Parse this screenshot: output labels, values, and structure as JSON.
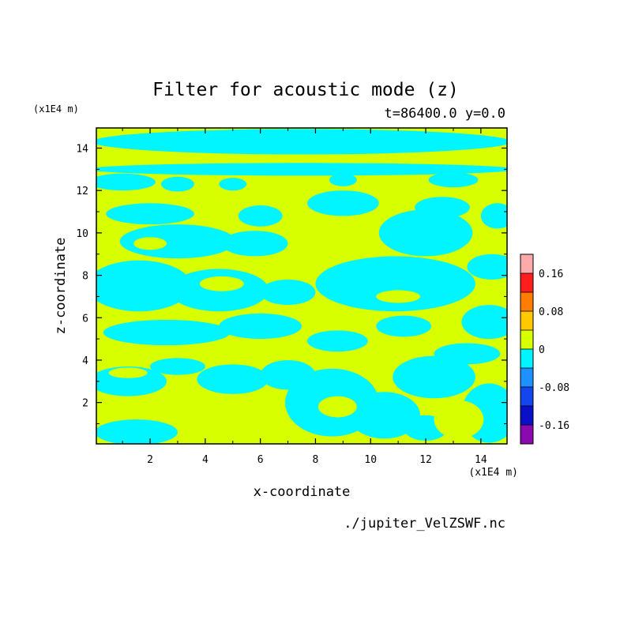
{
  "chart_data": {
    "type": "heatmap",
    "title": "Filter for acoustic mode (z)",
    "subtitle": "t=86400.0 y=0.0",
    "xlabel": "x-coordinate",
    "ylabel": "z-coordinate",
    "x_unit": "(x1E4 m)",
    "y_unit": "(x1E4 m)",
    "source_file": "./jupiter_VelZSWF.nc",
    "xlim": [
      0.05,
      14.95
    ],
    "ylim": [
      0.05,
      14.95
    ],
    "x_ticks": [
      "2",
      "4",
      "6",
      "8",
      "10",
      "12",
      "14"
    ],
    "y_ticks": [
      "2",
      "4",
      "6",
      "8",
      "10",
      "12",
      "14"
    ],
    "colorbar": {
      "levels": [
        -0.2,
        -0.16,
        -0.12,
        -0.08,
        -0.04,
        0,
        0.04,
        0.08,
        0.12,
        0.16,
        0.2
      ],
      "colors": [
        "#8b0ab0",
        "#0a0fc8",
        "#1446f0",
        "#1e90ff",
        "#00f5ff",
        "#d8ff00",
        "#ffc800",
        "#ff7d00",
        "#ff1e1e",
        "#ffaaaa"
      ],
      "tick_labels": [
        "-0.16",
        "-0.08",
        "0",
        "0.08",
        "0.16"
      ]
    },
    "field_colors": {
      "negative": "#00f5ff",
      "positive": "#d8ff00"
    },
    "regions_negative": [
      {
        "cx": 7.5,
        "cy": 14.3,
        "rx": 7.6,
        "ry": 0.6
      },
      {
        "cx": 7.5,
        "cy": 13.0,
        "rx": 7.8,
        "ry": 0.3
      },
      {
        "cx": 1.0,
        "cy": 12.4,
        "rx": 1.2,
        "ry": 0.4
      },
      {
        "cx": 3.0,
        "cy": 12.3,
        "rx": 0.6,
        "ry": 0.35
      },
      {
        "cx": 5.0,
        "cy": 12.3,
        "rx": 0.5,
        "ry": 0.3
      },
      {
        "cx": 9.0,
        "cy": 12.5,
        "rx": 0.5,
        "ry": 0.3
      },
      {
        "cx": 13.0,
        "cy": 12.5,
        "rx": 0.9,
        "ry": 0.35
      },
      {
        "cx": 2.0,
        "cy": 10.9,
        "rx": 1.6,
        "ry": 0.5
      },
      {
        "cx": 6.0,
        "cy": 10.8,
        "rx": 0.8,
        "ry": 0.5
      },
      {
        "cx": 9.0,
        "cy": 11.4,
        "rx": 1.3,
        "ry": 0.6
      },
      {
        "cx": 12.6,
        "cy": 11.2,
        "rx": 1.0,
        "ry": 0.5
      },
      {
        "cx": 14.6,
        "cy": 10.8,
        "rx": 0.6,
        "ry": 0.6
      },
      {
        "cx": 12.0,
        "cy": 10.0,
        "rx": 1.7,
        "ry": 1.1
      },
      {
        "cx": 3.0,
        "cy": 9.6,
        "rx": 2.1,
        "ry": 0.8
      },
      {
        "cx": 5.8,
        "cy": 9.5,
        "rx": 1.2,
        "ry": 0.6
      },
      {
        "cx": 1.6,
        "cy": 7.5,
        "rx": 1.9,
        "ry": 1.2
      },
      {
        "cx": 4.5,
        "cy": 7.3,
        "rx": 1.8,
        "ry": 1.0
      },
      {
        "cx": 10.9,
        "cy": 7.6,
        "rx": 2.9,
        "ry": 1.3
      },
      {
        "cx": 14.4,
        "cy": 8.4,
        "rx": 0.9,
        "ry": 0.6
      },
      {
        "cx": 7.0,
        "cy": 7.2,
        "rx": 1.0,
        "ry": 0.6
      },
      {
        "cx": 14.3,
        "cy": 5.8,
        "rx": 1.0,
        "ry": 0.8
      },
      {
        "cx": 11.2,
        "cy": 5.6,
        "rx": 1.0,
        "ry": 0.5
      },
      {
        "cx": 6.0,
        "cy": 5.6,
        "rx": 1.5,
        "ry": 0.6
      },
      {
        "cx": 2.6,
        "cy": 5.3,
        "rx": 2.3,
        "ry": 0.6
      },
      {
        "cx": 8.8,
        "cy": 4.9,
        "rx": 1.1,
        "ry": 0.5
      },
      {
        "cx": 1.2,
        "cy": 3.0,
        "rx": 1.4,
        "ry": 0.7
      },
      {
        "cx": 3.0,
        "cy": 3.7,
        "rx": 1.0,
        "ry": 0.4
      },
      {
        "cx": 5.0,
        "cy": 3.1,
        "rx": 1.3,
        "ry": 0.7
      },
      {
        "cx": 7.0,
        "cy": 3.3,
        "rx": 1.0,
        "ry": 0.7
      },
      {
        "cx": 8.6,
        "cy": 2.0,
        "rx": 1.7,
        "ry": 1.6
      },
      {
        "cx": 10.5,
        "cy": 1.4,
        "rx": 1.3,
        "ry": 1.1
      },
      {
        "cx": 12.3,
        "cy": 3.2,
        "rx": 1.5,
        "ry": 1.0
      },
      {
        "cx": 14.3,
        "cy": 1.5,
        "rx": 1.0,
        "ry": 1.4
      },
      {
        "cx": 1.5,
        "cy": 0.6,
        "rx": 1.5,
        "ry": 0.6
      },
      {
        "cx": 12.0,
        "cy": 0.8,
        "rx": 0.8,
        "ry": 0.6
      },
      {
        "cx": 13.5,
        "cy": 4.3,
        "rx": 1.2,
        "ry": 0.5
      }
    ],
    "regions_positive": [
      {
        "cx": 13.2,
        "cy": 1.2,
        "rx": 0.9,
        "ry": 0.9
      },
      {
        "cx": 5.6,
        "cy": 1.0,
        "rx": 1.0,
        "ry": 0.5
      },
      {
        "cx": 4.6,
        "cy": 7.6,
        "rx": 0.8,
        "ry": 0.35
      },
      {
        "cx": 2.0,
        "cy": 9.5,
        "rx": 0.6,
        "ry": 0.3
      },
      {
        "cx": 11.0,
        "cy": 7.0,
        "rx": 0.8,
        "ry": 0.3
      },
      {
        "cx": 8.8,
        "cy": 1.8,
        "rx": 0.7,
        "ry": 0.5
      },
      {
        "cx": 1.2,
        "cy": 3.4,
        "rx": 0.7,
        "ry": 0.25
      }
    ]
  }
}
